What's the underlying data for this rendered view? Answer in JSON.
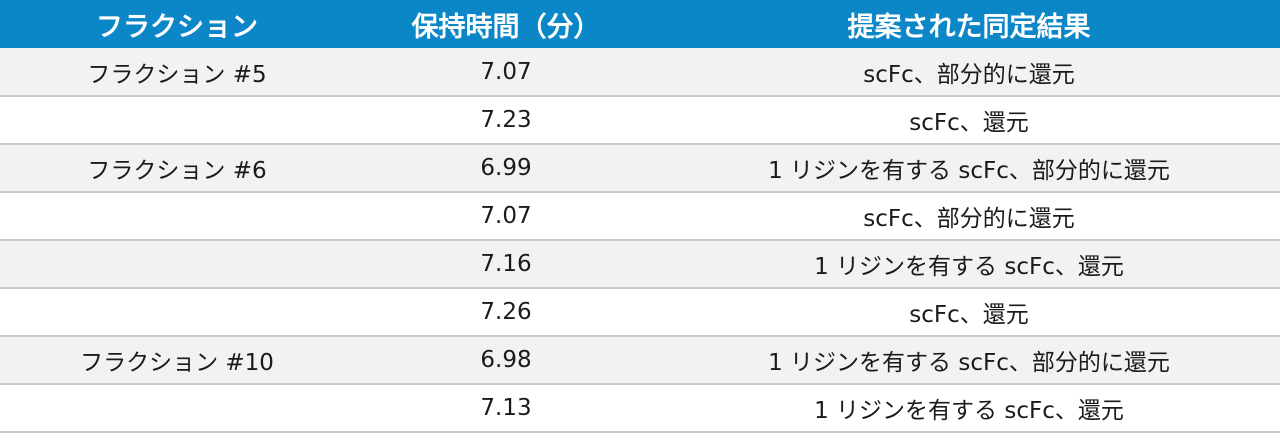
{
  "header": {
    "col_fraction": "フラクション",
    "col_retention": "保持時間（分）",
    "col_identification": "提案された同定結果"
  },
  "rows": [
    {
      "fraction": "フラクション #5",
      "retention": "7.07",
      "identification": "scFc、部分的に還元"
    },
    {
      "fraction": "",
      "retention": "7.23",
      "identification": "scFc、還元"
    },
    {
      "fraction": "フラクション #6",
      "retention": "6.99",
      "identification": "1 リジンを有する scFc、部分的に還元"
    },
    {
      "fraction": "",
      "retention": "7.07",
      "identification": "scFc、部分的に還元"
    },
    {
      "fraction": "",
      "retention": "7.16",
      "identification": "1 リジンを有する scFc、還元"
    },
    {
      "fraction": "",
      "retention": "7.26",
      "identification": "scFc、還元"
    },
    {
      "fraction": "フラクション #10",
      "retention": "6.98",
      "identification": "1 リジンを有する scFc、部分的に還元"
    },
    {
      "fraction": "",
      "retention": "7.13",
      "identification": "1 リジンを有する scFc、還元"
    }
  ],
  "colors": {
    "header_background": "#0b86c6",
    "header_text": "#ffffff",
    "row_stripe": "#f2f2f2",
    "row_border": "#c8c8c8"
  }
}
